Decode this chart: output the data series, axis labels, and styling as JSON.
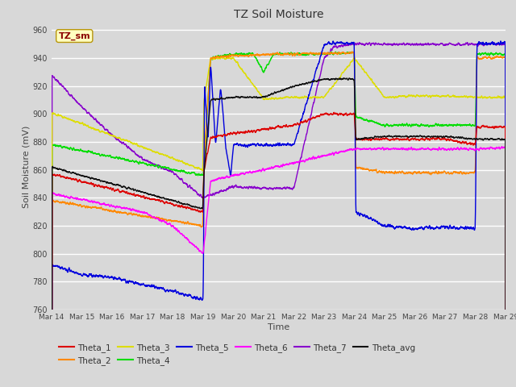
{
  "title": "TZ Soil Moisture",
  "xlabel": "Time",
  "ylabel": "Soil Moisture (mV)",
  "ylim": [
    760,
    965
  ],
  "xlim": [
    0,
    360
  ],
  "fig_bg": "#d8d8d8",
  "plot_bg": "#d8d8d8",
  "annotation_label": "TZ_sm",
  "annotation_color": "#8b0000",
  "annotation_bg": "#ffffc0",
  "annotation_border": "#b8960c",
  "xtick_labels": [
    "Mar 14",
    "Mar 15",
    "Mar 16",
    "Mar 17",
    "Mar 18",
    "Mar 19",
    "Mar 20",
    "Mar 21",
    "Mar 22",
    "Mar 23",
    "Mar 24",
    "Mar 25",
    "Mar 26",
    "Mar 27",
    "Mar 28",
    "Mar 29"
  ],
  "xtick_positions": [
    0,
    24,
    48,
    72,
    96,
    120,
    144,
    168,
    192,
    216,
    240,
    264,
    288,
    312,
    336,
    360
  ],
  "ytick_positions": [
    760,
    780,
    800,
    820,
    840,
    860,
    880,
    900,
    920,
    940,
    960
  ],
  "series_colors": {
    "Theta_1": "#dd0000",
    "Theta_2": "#ff8800",
    "Theta_3": "#dddd00",
    "Theta_4": "#00dd00",
    "Theta_5": "#0000dd",
    "Theta_6": "#ff00ff",
    "Theta_7": "#8800cc",
    "Theta_avg": "#111111"
  },
  "legend_row1": [
    {
      "label": "Theta_1",
      "color": "#dd0000"
    },
    {
      "label": "Theta_2",
      "color": "#ff8800"
    },
    {
      "label": "Theta_3",
      "color": "#dddd00"
    },
    {
      "label": "Theta_4",
      "color": "#00dd00"
    },
    {
      "label": "Theta_5",
      "color": "#0000dd"
    },
    {
      "label": "Theta_6",
      "color": "#ff00ff"
    }
  ],
  "legend_row2": [
    {
      "label": "Theta_7",
      "color": "#8800cc"
    },
    {
      "label": "Theta_avg",
      "color": "#111111"
    }
  ]
}
